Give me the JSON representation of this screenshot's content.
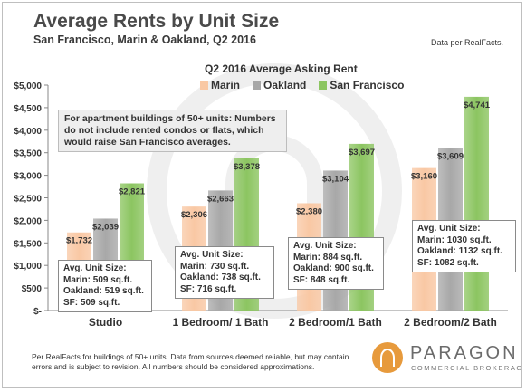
{
  "header": {
    "title": "Average Rents by Unit Size",
    "subtitle": "San Francisco, Marin & Oakland, Q2 2016",
    "source": "Data per RealFacts."
  },
  "note": "For apartment buildings of 50+ units: Numbers do not include rented condos or flats, which would raise San Francisco averages.",
  "unit_size_boxes": [
    {
      "title": "Avg. Unit Size:",
      "lines": [
        "Marin: 509 sq.ft.",
        "Oakland: 519 sq.ft.",
        "SF: 509 sq.ft."
      ]
    },
    {
      "title": "Avg. Unit Size:",
      "lines": [
        "Marin: 730 sq.ft.",
        "Oakland: 738 sq.ft.",
        "SF: 716 sq.ft."
      ]
    },
    {
      "title": "Avg. Unit Size:",
      "lines": [
        "Marin: 884 sq.ft.",
        "Oakland: 900 sq.ft.",
        "SF: 848 sq.ft."
      ]
    },
    {
      "title": "Avg. Unit Size:",
      "lines": [
        "Marin: 1030 sq.ft.",
        "Oakland: 1132 sq.ft.",
        "SF: 1082 sq.ft."
      ]
    }
  ],
  "footer": {
    "text": "Per RealFacts for buildings of 50+ units. Data from sources deemed reliable, but may contain errors and is subject to revision. All numbers should be considered approximations.",
    "logo_name": "PARAGON",
    "logo_sub": "COMMERCIAL BROKERAGE"
  },
  "chart_data": {
    "type": "bar",
    "title": "Q2 2016 Average Asking Rent",
    "categories": [
      "Studio",
      "1 Bedroom/ 1 Bath",
      "2 Bedroom/1 Bath",
      "2 Bedroom/2 Bath"
    ],
    "series": [
      {
        "name": "Marin",
        "color": "#f9c8a4",
        "values": [
          1732,
          2306,
          2380,
          3160
        ],
        "labels": [
          "$1,732",
          "$2,306",
          "$2,380",
          "$3,160"
        ]
      },
      {
        "name": "Oakland",
        "color": "#a8a8a8",
        "values": [
          2039,
          2663,
          3104,
          3609
        ],
        "labels": [
          "$2,039",
          "$2,663",
          "$3,104",
          "$3,609"
        ]
      },
      {
        "name": "San Francisco",
        "color": "#8cc561",
        "values": [
          2821,
          3378,
          3697,
          4741
        ],
        "labels": [
          "$2,821",
          "$3,378",
          "$3,697",
          "$4,741"
        ]
      }
    ],
    "yticks": [
      "$-",
      "$500",
      "$1,000",
      "$1,500",
      "$2,000",
      "$2,500",
      "$3,000",
      "$3,500",
      "$4,000",
      "$4,500",
      "$5,000"
    ],
    "ylim": [
      0,
      5000
    ],
    "grid": false,
    "legend": "top-center"
  }
}
